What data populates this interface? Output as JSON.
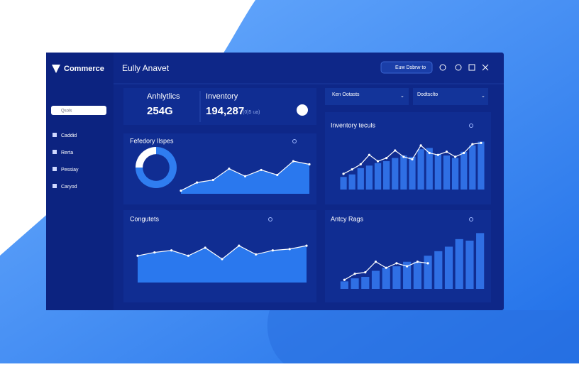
{
  "brand": "Commerce",
  "title": "Eully Anavet",
  "button": "Euw Dsbrw to",
  "search": "Qsols",
  "nav": [
    "Caddid",
    "Rerta",
    "Pessiay",
    "Caryod"
  ],
  "stats": [
    {
      "label": "Anhlytlics",
      "value": "254G"
    },
    {
      "label": "Inventory",
      "value": "194,287",
      "note": "(0)5 ua)"
    }
  ],
  "filters": [
    "Ken Ootasts",
    "Dodtsclto"
  ],
  "chart_data": [
    {
      "type": "pie",
      "values": [
        75,
        25
      ],
      "colors": [
        "#2f7df0",
        "#ffffff"
      ]
    },
    {
      "type": "area",
      "title": "Fefedory Ilspes",
      "values": [
        5,
        18,
        22,
        40,
        28,
        38,
        30,
        52,
        47
      ],
      "color": "#2a78ee",
      "ylim": [
        0,
        60
      ]
    },
    {
      "type": "bar",
      "title": "Inventory teculs",
      "ylim": [
        0,
        80
      ],
      "series": [
        {
          "color": "#2f6fe4",
          "values": [
            20,
            24,
            34,
            38,
            42,
            45,
            50,
            54,
            52,
            64,
            66,
            56,
            54,
            50,
            60,
            70,
            76
          ]
        },
        {
          "type": "line",
          "color": "#ffffff",
          "values": [
            25,
            32,
            40,
            55,
            45,
            50,
            62,
            52,
            48,
            70,
            58,
            55,
            60,
            52,
            58,
            72,
            74
          ]
        }
      ]
    },
    {
      "type": "area",
      "title": "Congutets",
      "values": [
        40,
        45,
        48,
        40,
        52,
        35,
        55,
        42,
        48,
        50,
        55
      ],
      "color": "#2a78ee",
      "ylim": [
        0,
        70
      ]
    },
    {
      "type": "bar",
      "title": "Antcy Rags",
      "ylim": [
        0,
        80
      ],
      "series": [
        {
          "color": "#2f6fe4",
          "values": [
            10,
            14,
            16,
            24,
            28,
            30,
            36,
            36,
            44,
            50,
            56,
            66,
            64,
            74
          ]
        },
        {
          "type": "line",
          "color": "#ffffff",
          "values": [
            12,
            20,
            22,
            36,
            28,
            34,
            30,
            36,
            34,
            null,
            null,
            null,
            null,
            null
          ]
        }
      ]
    }
  ]
}
